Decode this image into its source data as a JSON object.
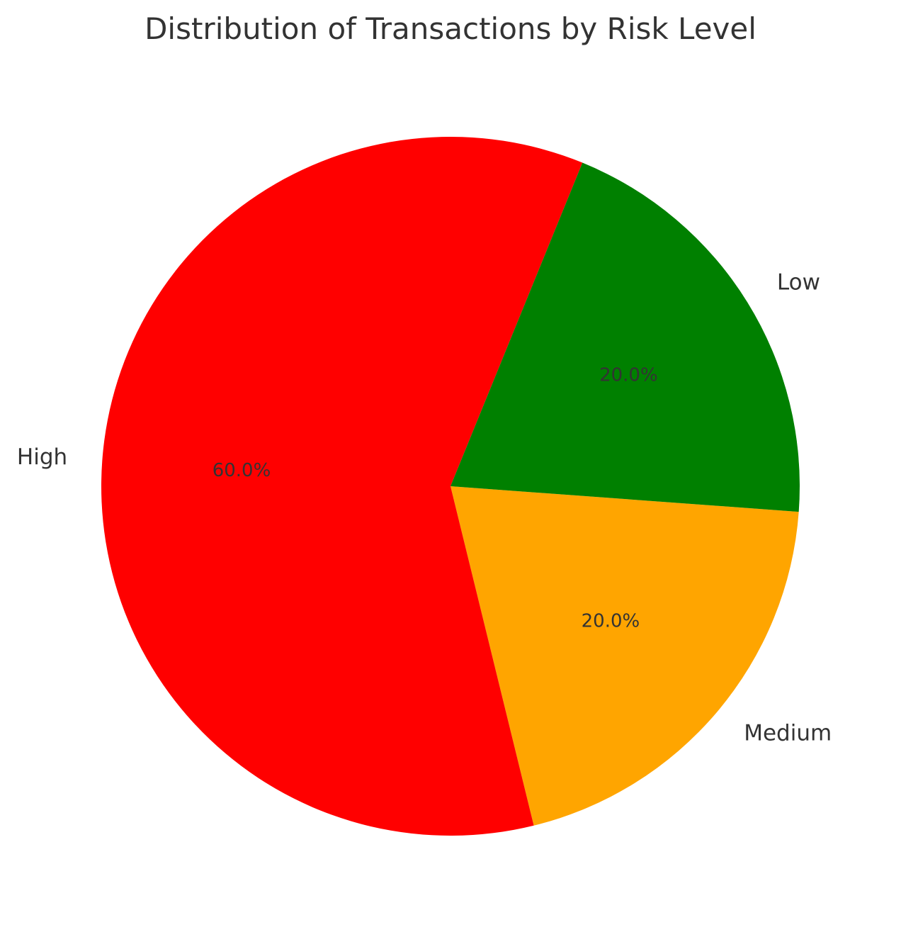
{
  "chart_data": {
    "type": "pie",
    "title": "Distribution of Transactions by Risk Level",
    "categories": [
      "Medium",
      "High",
      "Low"
    ],
    "values": [
      20.0,
      60.0,
      20.0
    ],
    "percent_labels": [
      "20.0%",
      "60.0%",
      "20.0%"
    ],
    "colors": [
      "#ffa500",
      "#ff0000",
      "#008000"
    ],
    "start_angle_deg": 4.2,
    "direction": "clockwise"
  }
}
